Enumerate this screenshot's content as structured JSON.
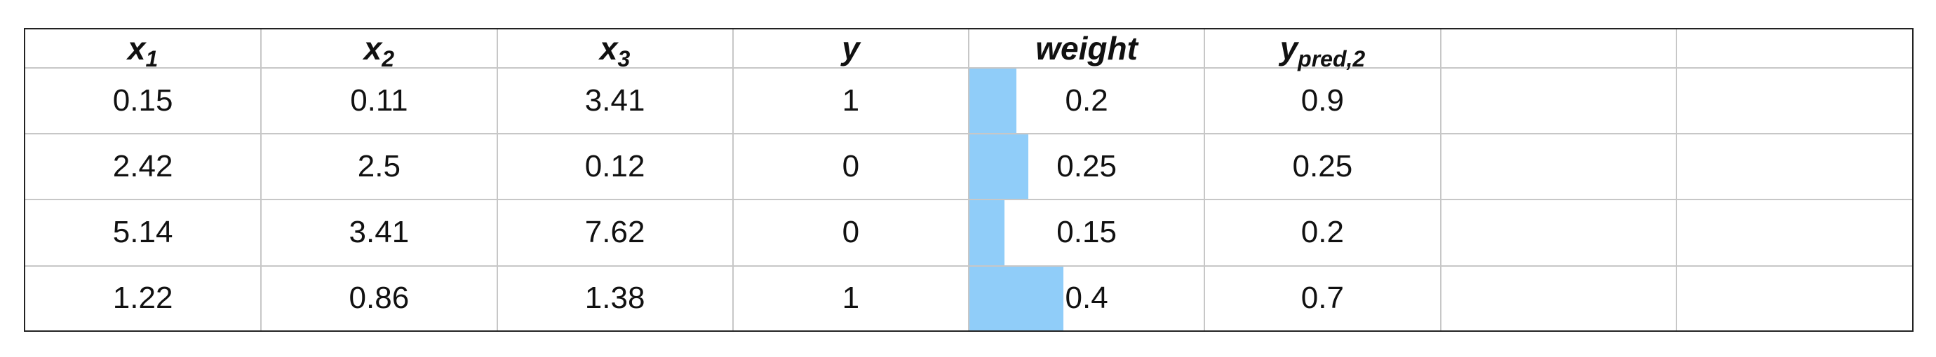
{
  "table": {
    "headers": [
      {
        "base": "x",
        "sub": "1"
      },
      {
        "base": "x",
        "sub": "2"
      },
      {
        "base": "x",
        "sub": "3"
      },
      {
        "base": "y",
        "sub": ""
      },
      {
        "base": "weight",
        "sub": ""
      },
      {
        "base": "y",
        "sub": "pred,2"
      },
      {
        "base": "",
        "sub": ""
      },
      {
        "base": "",
        "sub": ""
      }
    ],
    "rows": [
      {
        "x1": "0.15",
        "x2": "0.11",
        "x3": "3.41",
        "y": "1",
        "weight": "0.2",
        "weight_value": 0.2,
        "ypred2": "0.9"
      },
      {
        "x1": "2.42",
        "x2": "2.5",
        "x3": "0.12",
        "y": "0",
        "weight": "0.25",
        "weight_value": 0.25,
        "ypred2": "0.25"
      },
      {
        "x1": "5.14",
        "x2": "3.41",
        "x3": "7.62",
        "y": "0",
        "weight": "0.15",
        "weight_value": 0.15,
        "ypred2": "0.2"
      },
      {
        "x1": "1.22",
        "x2": "0.86",
        "x3": "1.38",
        "y": "1",
        "weight": "0.4",
        "weight_value": 0.4,
        "ypred2": "0.7"
      }
    ],
    "weight_bar_max": 1.0,
    "bar_color": "#90cdf9"
  }
}
